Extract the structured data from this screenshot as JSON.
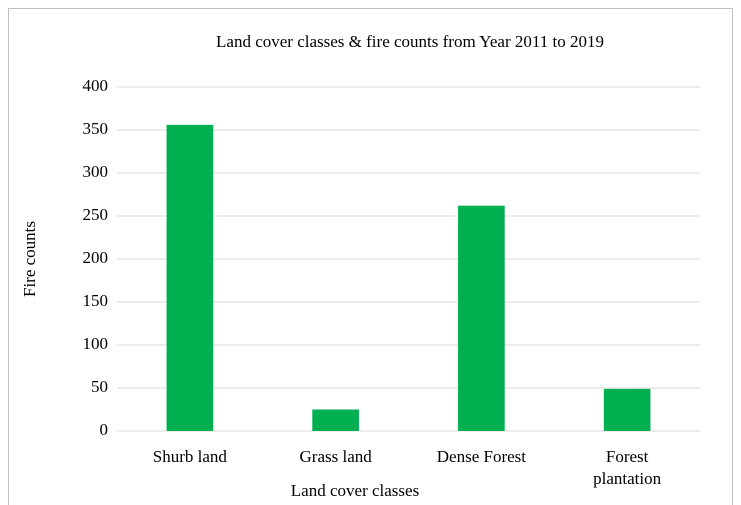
{
  "chart_data": {
    "type": "bar",
    "title": "Land cover classes & fire counts from Year 2011 to 2019",
    "x_label": "Land cover classes",
    "y_label": "Fire counts",
    "categories": [
      "Shurb land",
      "Grass land",
      "Dense Forest",
      "Forest plantation"
    ],
    "values": [
      356,
      25,
      262,
      49
    ],
    "color": "#00b050",
    "ylim": [
      0,
      400
    ],
    "yticks": [
      0,
      50,
      100,
      150,
      200,
      250,
      300,
      350,
      400
    ],
    "grid": true
  }
}
